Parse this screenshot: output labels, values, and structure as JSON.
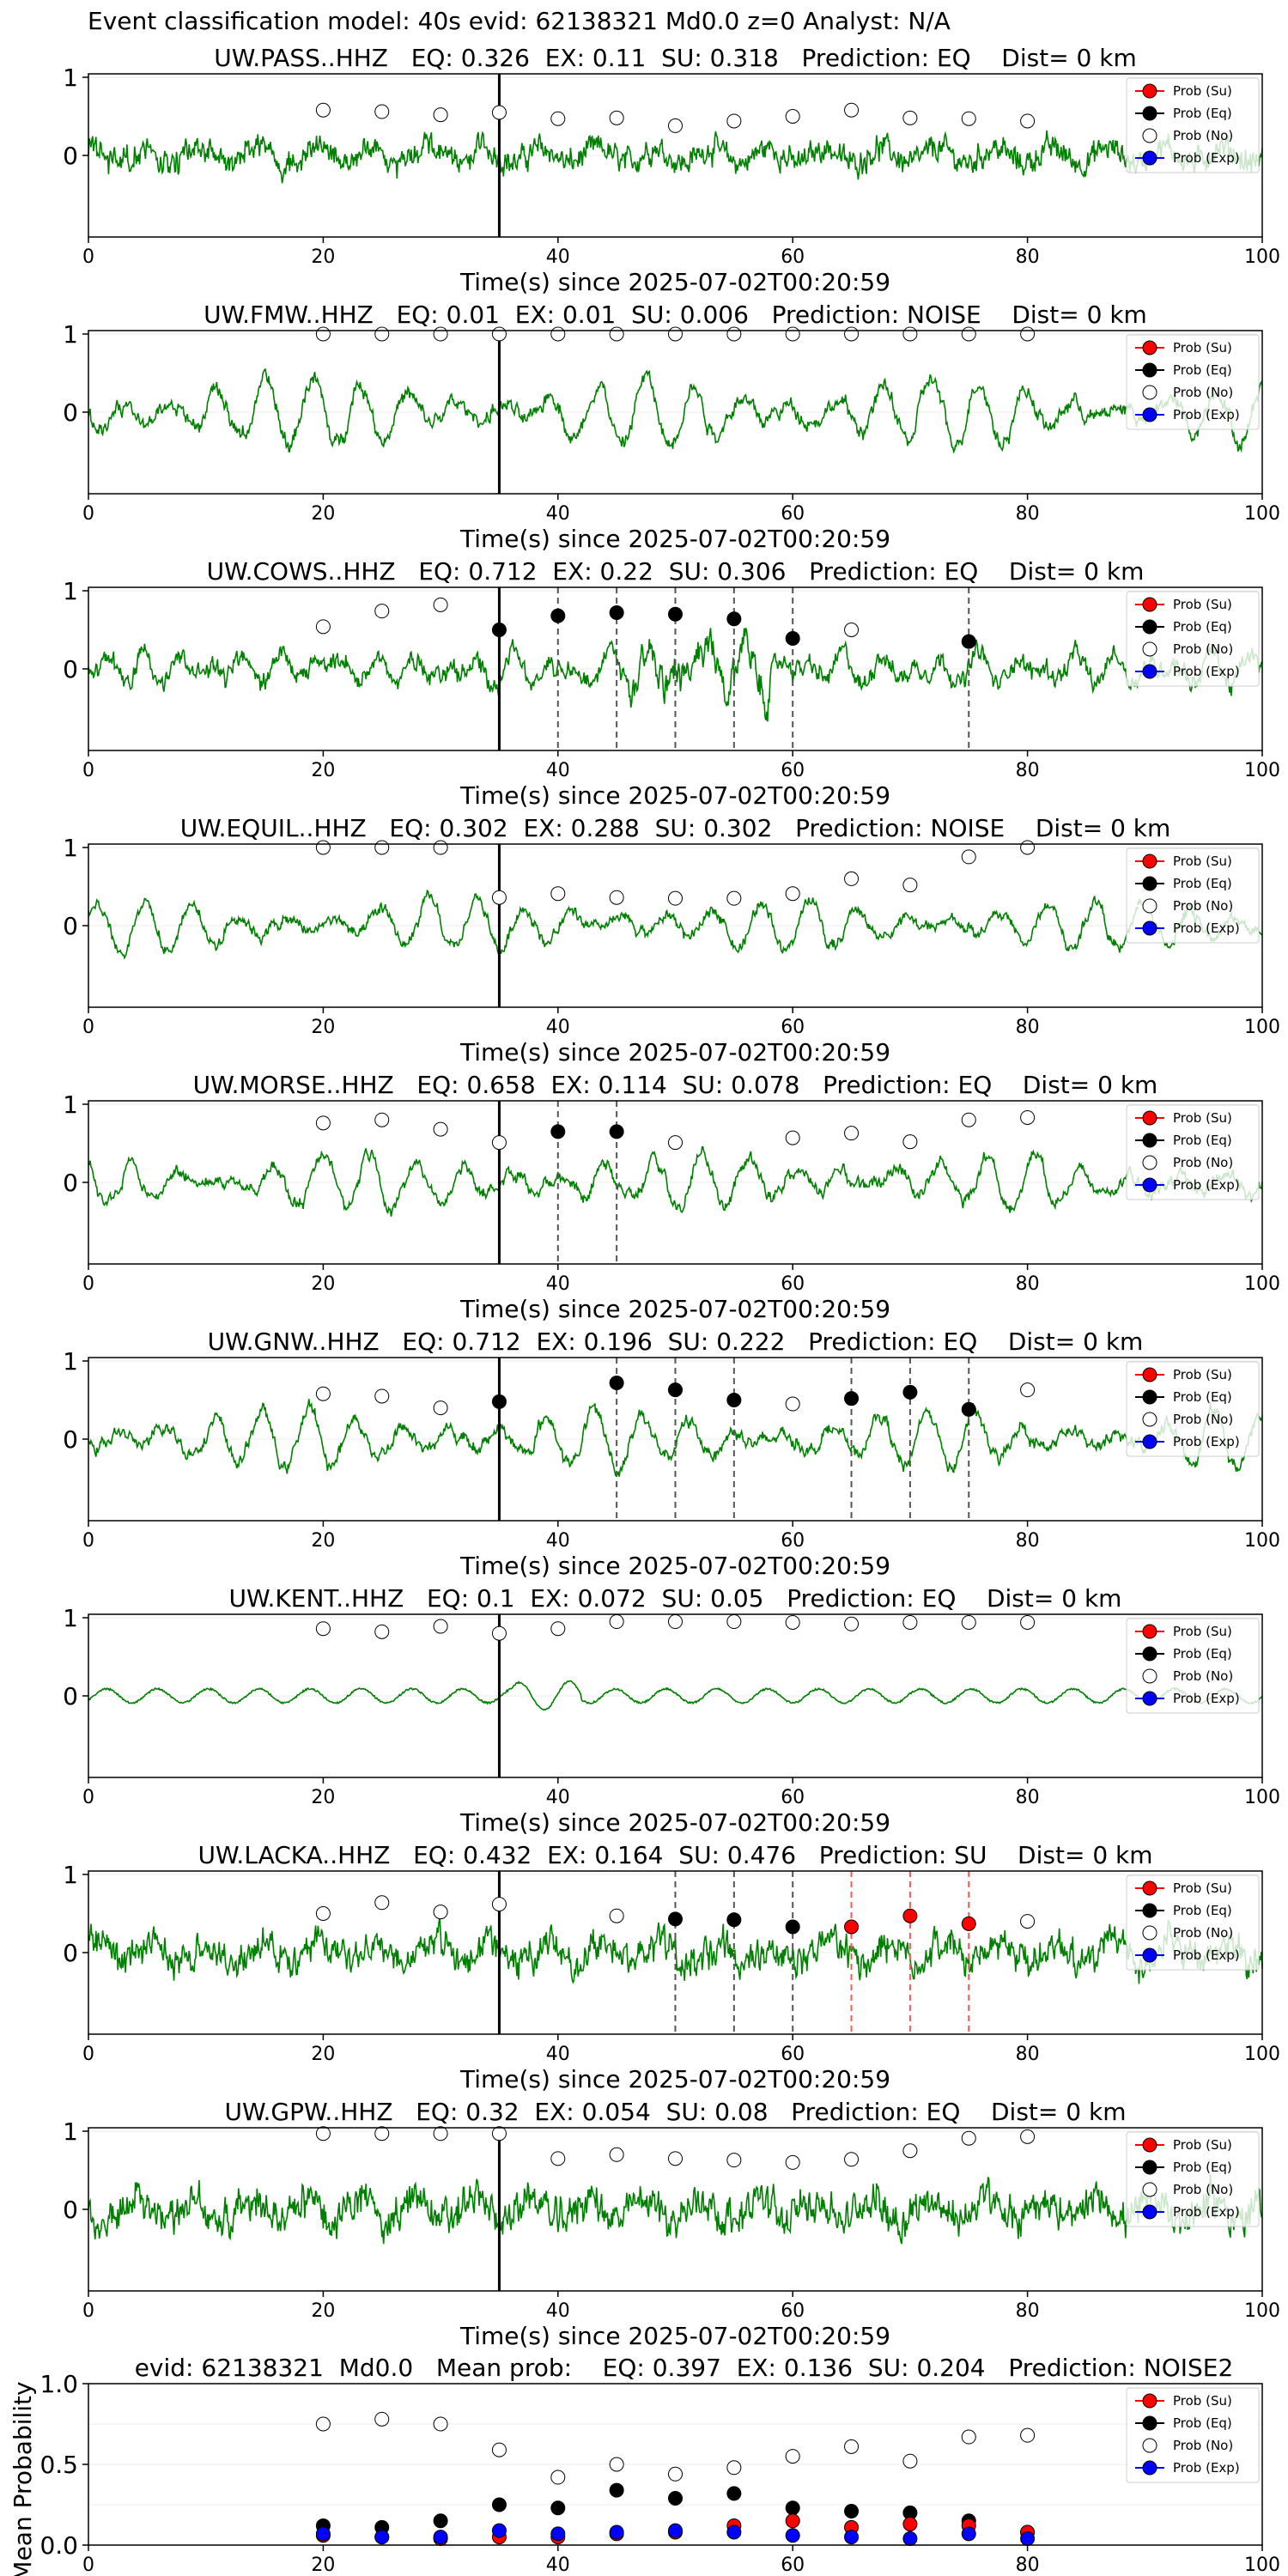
{
  "figure_title": "Event classification model: 40s evid: 62138321 Md0.0 z=0 Analyst: N/A",
  "colors": {
    "trace": "#008000",
    "su": "#ff0000",
    "eq": "#000000",
    "noise": "#ffffff",
    "exp": "#0000ff",
    "eq_line": "#555555",
    "su_line": "#ff5555"
  },
  "legend": [
    "Prob (Su)",
    "Prob (Eq)",
    "Prob (No)",
    "Prob (Exp)"
  ],
  "chart_data": [
    {
      "type": "line",
      "station": "UW.PASS..HHZ",
      "title": "UW.PASS..HHZ   EQ: 0.326  EX: 0.11  SU: 0.318   Prediction: EQ    Dist= 0 km",
      "xlabel": "Time(s) since 2025-07-02T00:20:59",
      "xlim": [
        0,
        100
      ],
      "xticks": [
        "0",
        "20",
        "40",
        "60",
        "80",
        "100"
      ],
      "yticks": [
        "1",
        "0"
      ],
      "trace": {
        "style": "noisy",
        "amplitude": 0.28,
        "seed": 1
      },
      "eq_markers": [],
      "su_markers": [],
      "noise_points": [
        [
          20,
          0.58
        ],
        [
          25,
          0.56
        ],
        [
          30,
          0.52
        ],
        [
          35,
          0.55
        ],
        [
          40,
          0.47
        ],
        [
          45,
          0.48
        ],
        [
          50,
          0.38
        ],
        [
          55,
          0.44
        ],
        [
          60,
          0.5
        ],
        [
          65,
          0.58
        ],
        [
          70,
          0.48
        ],
        [
          75,
          0.47
        ],
        [
          80,
          0.44
        ]
      ],
      "eq_points": [],
      "su_points": []
    },
    {
      "type": "line",
      "station": "UW.FMW..HHZ",
      "title": "UW.FMW..HHZ   EQ: 0.01  EX: 0.01  SU: 0.006   Prediction: NOISE    Dist= 0 km",
      "xlabel": "Time(s) since 2025-07-02T00:20:59",
      "xlim": [
        0,
        100
      ],
      "xticks": [
        "0",
        "20",
        "40",
        "60",
        "80",
        "100"
      ],
      "yticks": [
        "1",
        "0"
      ],
      "trace": {
        "style": "wavy",
        "amplitude": 0.5,
        "seed": 2
      },
      "eq_markers": [],
      "su_markers": [],
      "noise_points": [
        [
          20,
          1.0
        ],
        [
          25,
          1.0
        ],
        [
          30,
          1.0
        ],
        [
          35,
          1.0
        ],
        [
          40,
          1.0
        ],
        [
          45,
          1.0
        ],
        [
          50,
          1.0
        ],
        [
          55,
          1.0
        ],
        [
          60,
          1.0
        ],
        [
          65,
          1.0
        ],
        [
          70,
          1.0
        ],
        [
          75,
          1.0
        ],
        [
          80,
          1.0
        ]
      ],
      "eq_points": [],
      "su_points": []
    },
    {
      "type": "line",
      "station": "UW.COWS..HHZ",
      "title": "UW.COWS..HHZ   EQ: 0.712  EX: 0.22  SU: 0.306   Prediction: EQ    Dist= 0 km",
      "xlabel": "Time(s) since 2025-07-02T00:20:59",
      "xlim": [
        0,
        100
      ],
      "xticks": [
        "0",
        "20",
        "40",
        "60",
        "80",
        "100"
      ],
      "yticks": [
        "1",
        "0"
      ],
      "trace": {
        "style": "mixed",
        "amplitude": 0.38,
        "seed": 3
      },
      "eq_markers": [
        40,
        45,
        50,
        55,
        60,
        75
      ],
      "su_markers": [],
      "noise_points": [
        [
          20,
          0.54
        ],
        [
          25,
          0.74
        ],
        [
          30,
          0.82
        ],
        [
          65,
          0.5
        ]
      ],
      "eq_points": [
        [
          35,
          0.5
        ],
        [
          40,
          0.68
        ],
        [
          45,
          0.72
        ],
        [
          50,
          0.7
        ],
        [
          55,
          0.64
        ],
        [
          60,
          0.39
        ],
        [
          75,
          0.35
        ]
      ],
      "su_points": []
    },
    {
      "type": "line",
      "station": "UW.EQUIL..HHZ",
      "title": "UW.EQUIL..HHZ   EQ: 0.302  EX: 0.288  SU: 0.302   Prediction: NOISE    Dist= 0 km",
      "xlabel": "Time(s) since 2025-07-02T00:20:59",
      "xlim": [
        0,
        100
      ],
      "xticks": [
        "0",
        "20",
        "40",
        "60",
        "80",
        "100"
      ],
      "yticks": [
        "1",
        "0"
      ],
      "trace": {
        "style": "wavy",
        "amplitude": 0.38,
        "seed": 4
      },
      "eq_markers": [],
      "su_markers": [],
      "noise_points": [
        [
          20,
          1.0
        ],
        [
          25,
          1.0
        ],
        [
          30,
          1.0
        ],
        [
          35,
          0.36
        ],
        [
          40,
          0.41
        ],
        [
          45,
          0.36
        ],
        [
          50,
          0.35
        ],
        [
          55,
          0.35
        ],
        [
          60,
          0.41
        ],
        [
          65,
          0.6
        ],
        [
          70,
          0.52
        ],
        [
          75,
          0.88
        ],
        [
          80,
          1.0
        ]
      ],
      "eq_points": [],
      "su_points": []
    },
    {
      "type": "line",
      "station": "UW.MORSE..HHZ",
      "title": "UW.MORSE..HHZ   EQ: 0.658  EX: 0.114  SU: 0.078   Prediction: EQ    Dist= 0 km",
      "xlabel": "Time(s) since 2025-07-02T00:20:59",
      "xlim": [
        0,
        100
      ],
      "xticks": [
        "0",
        "20",
        "40",
        "60",
        "80",
        "100"
      ],
      "yticks": [
        "1",
        "0"
      ],
      "trace": {
        "style": "wavy",
        "amplitude": 0.4,
        "seed": 5
      },
      "eq_markers": [
        40,
        45
      ],
      "su_markers": [],
      "noise_points": [
        [
          20,
          0.76
        ],
        [
          25,
          0.8
        ],
        [
          30,
          0.68
        ],
        [
          35,
          0.51
        ],
        [
          50,
          0.51
        ],
        [
          60,
          0.57
        ],
        [
          65,
          0.63
        ],
        [
          70,
          0.52
        ],
        [
          75,
          0.8
        ],
        [
          80,
          0.83
        ]
      ],
      "eq_points": [
        [
          40,
          0.65
        ],
        [
          45,
          0.65
        ]
      ],
      "su_points": []
    },
    {
      "type": "line",
      "station": "UW.GNW..HHZ",
      "title": "UW.GNW..HHZ   EQ: 0.712  EX: 0.196  SU: 0.222   Prediction: EQ    Dist= 0 km",
      "xlabel": "Time(s) since 2025-07-02T00:20:59",
      "xlim": [
        0,
        100
      ],
      "xticks": [
        "0",
        "20",
        "40",
        "60",
        "80",
        "100"
      ],
      "yticks": [
        "1",
        "0"
      ],
      "trace": {
        "style": "wavy",
        "amplitude": 0.42,
        "seed": 6
      },
      "eq_markers": [
        45,
        50,
        55,
        65,
        70,
        75
      ],
      "su_markers": [],
      "noise_points": [
        [
          20,
          0.58
        ],
        [
          25,
          0.55
        ],
        [
          30,
          0.4
        ],
        [
          60,
          0.45
        ],
        [
          80,
          0.63
        ]
      ],
      "eq_points": [
        [
          35,
          0.48
        ],
        [
          45,
          0.72
        ],
        [
          50,
          0.63
        ],
        [
          55,
          0.5
        ],
        [
          65,
          0.52
        ],
        [
          70,
          0.6
        ],
        [
          75,
          0.38
        ]
      ],
      "su_points": []
    },
    {
      "type": "line",
      "station": "UW.KENT..HHZ",
      "title": "UW.KENT..HHZ   EQ: 0.1  EX: 0.072  SU: 0.05   Prediction: EQ    Dist= 0 km",
      "xlabel": "Time(s) since 2025-07-02T00:20:59",
      "xlim": [
        0,
        100
      ],
      "xticks": [
        "0",
        "20",
        "40",
        "60",
        "80",
        "100"
      ],
      "yticks": [
        "1",
        "0"
      ],
      "trace": {
        "style": "smooth",
        "amplitude": 0.15,
        "seed": 7
      },
      "eq_markers": [],
      "su_markers": [],
      "noise_points": [
        [
          20,
          0.86
        ],
        [
          25,
          0.82
        ],
        [
          30,
          0.89
        ],
        [
          35,
          0.8
        ],
        [
          40,
          0.86
        ],
        [
          45,
          0.95
        ],
        [
          50,
          0.95
        ],
        [
          55,
          0.95
        ],
        [
          60,
          0.94
        ],
        [
          65,
          0.92
        ],
        [
          70,
          0.94
        ],
        [
          75,
          0.94
        ],
        [
          80,
          0.94
        ]
      ],
      "eq_points": [],
      "su_points": []
    },
    {
      "type": "line",
      "station": "UW.LACKA..HHZ",
      "title": "UW.LACKA..HHZ   EQ: 0.432  EX: 0.164  SU: 0.476   Prediction: SU    Dist= 0 km",
      "xlabel": "Time(s) since 2025-07-02T00:20:59",
      "xlim": [
        0,
        100
      ],
      "xticks": [
        "0",
        "20",
        "40",
        "60",
        "80",
        "100"
      ],
      "yticks": [
        "1",
        "0"
      ],
      "trace": {
        "style": "noisy",
        "amplitude": 0.36,
        "seed": 8
      },
      "eq_markers": [
        50,
        55,
        60
      ],
      "su_markers": [
        65,
        70,
        75
      ],
      "noise_points": [
        [
          20,
          0.5
        ],
        [
          25,
          0.64
        ],
        [
          30,
          0.52
        ],
        [
          35,
          0.62
        ],
        [
          45,
          0.47
        ],
        [
          80,
          0.4
        ]
      ],
      "eq_points": [
        [
          50,
          0.43
        ],
        [
          55,
          0.42
        ],
        [
          60,
          0.33
        ]
      ],
      "su_points": [
        [
          65,
          0.33
        ],
        [
          70,
          0.47
        ],
        [
          75,
          0.37
        ]
      ]
    },
    {
      "type": "line",
      "station": "UW.GPW..HHZ",
      "title": "UW.GPW..HHZ   EQ: 0.32  EX: 0.054  SU: 0.08   Prediction: EQ    Dist= 0 km",
      "xlabel": "Time(s) since 2025-07-02T00:20:59",
      "xlim": [
        0,
        100
      ],
      "xticks": [
        "0",
        "20",
        "40",
        "60",
        "80",
        "100"
      ],
      "yticks": [
        "1",
        "0"
      ],
      "trace": {
        "style": "noisy",
        "amplitude": 0.4,
        "seed": 9
      },
      "eq_markers": [],
      "su_markers": [],
      "noise_points": [
        [
          20,
          0.97
        ],
        [
          25,
          0.97
        ],
        [
          30,
          0.97
        ],
        [
          35,
          0.97
        ],
        [
          40,
          0.65
        ],
        [
          45,
          0.7
        ],
        [
          50,
          0.65
        ],
        [
          55,
          0.63
        ],
        [
          60,
          0.6
        ],
        [
          65,
          0.64
        ],
        [
          70,
          0.75
        ],
        [
          75,
          0.91
        ],
        [
          80,
          0.93
        ]
      ],
      "eq_points": [],
      "su_points": []
    },
    {
      "type": "scatter",
      "station": "",
      "title": "evid: 62138321  Md0.0   Mean prob:    EQ: 0.397  EX: 0.136  SU: 0.204   Prediction: NOISE2",
      "xlabel": "",
      "ylabel": "Mean Probability",
      "xlim": [
        0,
        100
      ],
      "ylim": [
        0,
        1
      ],
      "xticks": [
        "0",
        "20",
        "40",
        "60",
        "80",
        "100"
      ],
      "yticks": [
        "1.0",
        "0.5",
        "0.0"
      ],
      "noise_points": [
        [
          20,
          0.75
        ],
        [
          25,
          0.78
        ],
        [
          30,
          0.75
        ],
        [
          35,
          0.59
        ],
        [
          40,
          0.42
        ],
        [
          45,
          0.5
        ],
        [
          50,
          0.44
        ],
        [
          55,
          0.48
        ],
        [
          60,
          0.55
        ],
        [
          65,
          0.61
        ],
        [
          70,
          0.52
        ],
        [
          75,
          0.67
        ],
        [
          80,
          0.68
        ]
      ],
      "eq_points": [
        [
          20,
          0.12
        ],
        [
          25,
          0.11
        ],
        [
          30,
          0.15
        ],
        [
          35,
          0.25
        ],
        [
          40,
          0.23
        ],
        [
          45,
          0.34
        ],
        [
          50,
          0.29
        ],
        [
          55,
          0.32
        ],
        [
          60,
          0.23
        ],
        [
          65,
          0.21
        ],
        [
          70,
          0.2
        ],
        [
          75,
          0.15
        ],
        [
          80,
          0.08
        ]
      ],
      "su_points": [
        [
          20,
          0.06
        ],
        [
          25,
          0.05
        ],
        [
          30,
          0.04
        ],
        [
          35,
          0.05
        ],
        [
          40,
          0.05
        ],
        [
          45,
          0.07
        ],
        [
          50,
          0.08
        ],
        [
          55,
          0.12
        ],
        [
          60,
          0.15
        ],
        [
          65,
          0.11
        ],
        [
          70,
          0.13
        ],
        [
          75,
          0.12
        ],
        [
          80,
          0.08
        ]
      ],
      "exp_points": [
        [
          20,
          0.07
        ],
        [
          25,
          0.05
        ],
        [
          30,
          0.05
        ],
        [
          35,
          0.09
        ],
        [
          40,
          0.07
        ],
        [
          45,
          0.08
        ],
        [
          50,
          0.09
        ],
        [
          55,
          0.08
        ],
        [
          60,
          0.06
        ],
        [
          65,
          0.05
        ],
        [
          70,
          0.04
        ],
        [
          75,
          0.07
        ],
        [
          80,
          0.04
        ]
      ]
    }
  ]
}
